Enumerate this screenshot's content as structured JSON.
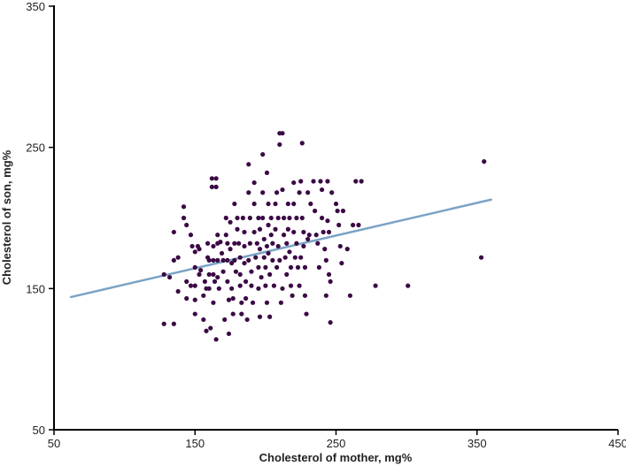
{
  "chart_data": {
    "type": "scatter",
    "xlabel": "Cholesterol of mother, mg%",
    "ylabel": "Cholesterol of son, mg%",
    "xlim": [
      50,
      450
    ],
    "ylim": [
      50,
      350
    ],
    "x_ticks": [
      "50",
      "150",
      "250",
      "350",
      "450"
    ],
    "y_ticks": [
      "50",
      "150",
      "250",
      "350"
    ],
    "x_tick_values": [
      50,
      150,
      250,
      350,
      450
    ],
    "y_tick_values": [
      50,
      150,
      250,
      350
    ],
    "grid": false,
    "point_color": "#3b0a45",
    "line_color": "#7ba3c6",
    "trend_line": {
      "x": [
        62,
        360
      ],
      "y": [
        144,
        213
      ]
    },
    "points": [
      [
        128,
        125
      ],
      [
        128,
        160
      ],
      [
        132,
        158
      ],
      [
        135,
        125
      ],
      [
        135,
        190
      ],
      [
        135,
        170
      ],
      [
        138,
        172
      ],
      [
        138,
        148
      ],
      [
        142,
        200
      ],
      [
        142,
        208
      ],
      [
        144,
        195
      ],
      [
        144,
        155
      ],
      [
        144,
        143
      ],
      [
        147,
        188
      ],
      [
        147,
        152
      ],
      [
        148,
        180
      ],
      [
        150,
        176
      ],
      [
        150,
        165
      ],
      [
        150,
        132
      ],
      [
        150,
        152
      ],
      [
        150,
        142
      ],
      [
        152,
        180
      ],
      [
        153,
        178
      ],
      [
        153,
        160
      ],
      [
        154,
        163
      ],
      [
        156,
        145
      ],
      [
        156,
        128
      ],
      [
        157,
        155
      ],
      [
        158,
        120
      ],
      [
        158,
        150
      ],
      [
        159,
        182
      ],
      [
        159,
        172
      ],
      [
        160,
        170
      ],
      [
        160,
        160
      ],
      [
        160,
        150
      ],
      [
        161,
        122
      ],
      [
        162,
        228
      ],
      [
        162,
        222
      ],
      [
        163,
        180
      ],
      [
        163,
        170
      ],
      [
        163,
        160
      ],
      [
        163,
        140
      ],
      [
        164,
        155
      ],
      [
        165,
        114
      ],
      [
        165,
        228
      ],
      [
        165,
        222
      ],
      [
        166,
        188
      ],
      [
        166,
        182
      ],
      [
        166,
        170
      ],
      [
        166,
        158
      ],
      [
        167,
        150
      ],
      [
        168,
        183
      ],
      [
        169,
        175
      ],
      [
        170,
        170
      ],
      [
        170,
        162
      ],
      [
        171,
        128
      ],
      [
        172,
        200
      ],
      [
        172,
        188
      ],
      [
        173,
        182
      ],
      [
        173,
        170
      ],
      [
        173,
        155
      ],
      [
        174,
        142
      ],
      [
        174,
        118
      ],
      [
        175,
        197
      ],
      [
        175,
        178
      ],
      [
        176,
        168
      ],
      [
        176,
        150
      ],
      [
        177,
        143
      ],
      [
        177,
        132
      ],
      [
        178,
        210
      ],
      [
        178,
        182
      ],
      [
        178,
        170
      ],
      [
        179,
        162
      ],
      [
        180,
        200
      ],
      [
        180,
        192
      ],
      [
        181,
        182
      ],
      [
        182,
        172
      ],
      [
        182,
        160
      ],
      [
        182,
        152
      ],
      [
        183,
        140
      ],
      [
        183,
        132
      ],
      [
        184,
        200
      ],
      [
        185,
        190
      ],
      [
        185,
        180
      ],
      [
        185,
        168
      ],
      [
        186,
        155
      ],
      [
        186,
        143
      ],
      [
        187,
        128
      ],
      [
        188,
        238
      ],
      [
        188,
        218
      ],
      [
        188,
        170
      ],
      [
        189,
        200
      ],
      [
        189,
        182
      ],
      [
        190,
        162
      ],
      [
        190,
        152
      ],
      [
        191,
        140
      ],
      [
        192,
        225
      ],
      [
        192,
        210
      ],
      [
        192,
        190
      ],
      [
        193,
        172
      ],
      [
        194,
        182
      ],
      [
        195,
        200
      ],
      [
        195,
        165
      ],
      [
        195,
        150
      ],
      [
        196,
        192
      ],
      [
        196,
        178
      ],
      [
        196,
        130
      ],
      [
        197,
        158
      ],
      [
        198,
        245
      ],
      [
        198,
        218
      ],
      [
        198,
        200
      ],
      [
        199,
        185
      ],
      [
        199,
        172
      ],
      [
        200,
        165
      ],
      [
        200,
        152
      ],
      [
        201,
        232
      ],
      [
        201,
        180
      ],
      [
        201,
        140
      ],
      [
        202,
        210
      ],
      [
        202,
        195
      ],
      [
        202,
        175
      ],
      [
        203,
        130
      ],
      [
        203,
        160
      ],
      [
        204,
        200
      ],
      [
        204,
        188
      ],
      [
        205,
        182
      ],
      [
        205,
        170
      ],
      [
        206,
        152
      ],
      [
        207,
        210
      ],
      [
        207,
        192
      ],
      [
        208,
        218
      ],
      [
        208,
        165
      ],
      [
        209,
        200
      ],
      [
        209,
        180
      ],
      [
        210,
        252
      ],
      [
        210,
        260
      ],
      [
        210,
        170
      ],
      [
        211,
        140
      ],
      [
        212,
        260
      ],
      [
        212,
        220
      ],
      [
        212,
        150
      ],
      [
        213,
        200
      ],
      [
        213,
        188
      ],
      [
        214,
        172
      ],
      [
        215,
        182
      ],
      [
        215,
        160
      ],
      [
        216,
        210
      ],
      [
        216,
        192
      ],
      [
        217,
        200
      ],
      [
        217,
        176
      ],
      [
        218,
        165
      ],
      [
        218,
        152
      ],
      [
        219,
        145
      ],
      [
        220,
        225
      ],
      [
        220,
        210
      ],
      [
        220,
        190
      ],
      [
        221,
        172
      ],
      [
        222,
        182
      ],
      [
        222,
        200
      ],
      [
        223,
        165
      ],
      [
        224,
        218
      ],
      [
        224,
        152
      ],
      [
        225,
        226
      ],
      [
        225,
        172
      ],
      [
        226,
        253
      ],
      [
        226,
        200
      ],
      [
        227,
        190
      ],
      [
        227,
        180
      ],
      [
        228,
        165
      ],
      [
        228,
        145
      ],
      [
        229,
        132
      ],
      [
        230,
        218
      ],
      [
        230,
        185
      ],
      [
        231,
        188
      ],
      [
        232,
        210
      ],
      [
        234,
        226
      ],
      [
        235,
        205
      ],
      [
        236,
        188
      ],
      [
        237,
        182
      ],
      [
        238,
        165
      ],
      [
        239,
        226
      ],
      [
        240,
        220
      ],
      [
        240,
        200
      ],
      [
        241,
        190
      ],
      [
        242,
        178
      ],
      [
        243,
        170
      ],
      [
        243,
        145
      ],
      [
        244,
        226
      ],
      [
        244,
        198
      ],
      [
        245,
        190
      ],
      [
        245,
        160
      ],
      [
        246,
        155
      ],
      [
        246,
        126
      ],
      [
        247,
        218
      ],
      [
        250,
        210
      ],
      [
        251,
        205
      ],
      [
        252,
        195
      ],
      [
        253,
        180
      ],
      [
        254,
        168
      ],
      [
        255,
        205
      ],
      [
        258,
        178
      ],
      [
        260,
        145
      ],
      [
        262,
        195
      ],
      [
        264,
        226
      ],
      [
        266,
        195
      ],
      [
        268,
        226
      ],
      [
        278,
        152
      ],
      [
        301,
        152
      ],
      [
        353,
        172
      ],
      [
        355,
        240
      ]
    ]
  }
}
